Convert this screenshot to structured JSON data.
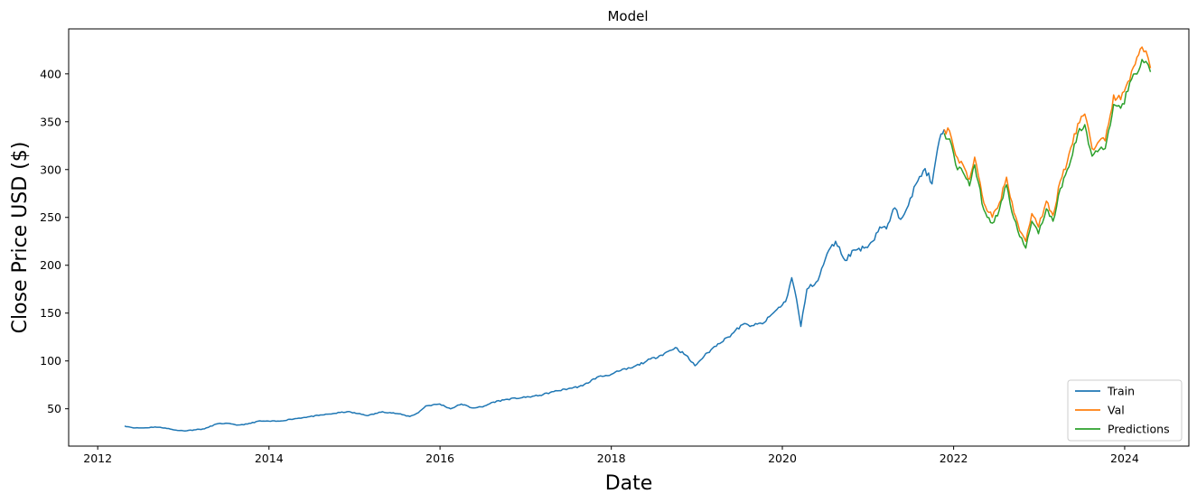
{
  "chart_data": {
    "type": "line",
    "title": "Model",
    "xlabel": "Date",
    "ylabel": "Close Price USD ($)",
    "xlim": [
      "2011-08-30",
      "2024-10-01"
    ],
    "ylim": [
      11,
      447
    ],
    "x_ticks": [
      "2012",
      "2014",
      "2016",
      "2018",
      "2020",
      "2022",
      "2024"
    ],
    "y_ticks": [
      "50",
      "100",
      "150",
      "200",
      "250",
      "300",
      "350",
      "400"
    ],
    "x_tick_values": [
      "2012-01-01",
      "2014-01-01",
      "2016-01-01",
      "2018-01-01",
      "2020-01-01",
      "2022-01-01",
      "2024-01-01"
    ],
    "y_tick_values": [
      50,
      100,
      150,
      200,
      250,
      300,
      350,
      400
    ],
    "grid": false,
    "legend_position": "lower right",
    "series": [
      {
        "name": "Train",
        "color": "#1f77b4",
        "points": [
          [
            "2012-04-25",
            32
          ],
          [
            "2012-05-15",
            31
          ],
          [
            "2012-06-10",
            30
          ],
          [
            "2012-07-15",
            30
          ],
          [
            "2012-09-01",
            31
          ],
          [
            "2012-10-15",
            30
          ],
          [
            "2012-11-20",
            28
          ],
          [
            "2012-12-31",
            27
          ],
          [
            "2013-02-15",
            28
          ],
          [
            "2013-04-01",
            29
          ],
          [
            "2013-05-20",
            34
          ],
          [
            "2013-07-01",
            35
          ],
          [
            "2013-08-15",
            33
          ],
          [
            "2013-10-01",
            34
          ],
          [
            "2013-11-15",
            37
          ],
          [
            "2014-01-01",
            37
          ],
          [
            "2014-02-15",
            37
          ],
          [
            "2014-04-01",
            39
          ],
          [
            "2014-06-01",
            41
          ],
          [
            "2014-08-01",
            43
          ],
          [
            "2014-10-01",
            45
          ],
          [
            "2014-12-01",
            47
          ],
          [
            "2015-01-15",
            45
          ],
          [
            "2015-03-01",
            43
          ],
          [
            "2015-05-01",
            47
          ],
          [
            "2015-07-01",
            45
          ],
          [
            "2015-08-25",
            42
          ],
          [
            "2015-10-01",
            46
          ],
          [
            "2015-11-01",
            53
          ],
          [
            "2015-12-31",
            55
          ],
          [
            "2016-02-15",
            50
          ],
          [
            "2016-04-01",
            55
          ],
          [
            "2016-05-15",
            51
          ],
          [
            "2016-07-01",
            52
          ],
          [
            "2016-08-15",
            57
          ],
          [
            "2016-10-15",
            60
          ],
          [
            "2016-12-31",
            62
          ],
          [
            "2017-03-01",
            64
          ],
          [
            "2017-05-01",
            68
          ],
          [
            "2017-07-01",
            71
          ],
          [
            "2017-09-01",
            74
          ],
          [
            "2017-11-01",
            83
          ],
          [
            "2018-01-01",
            86
          ],
          [
            "2018-02-10",
            90
          ],
          [
            "2018-04-01",
            93
          ],
          [
            "2018-06-01",
            100
          ],
          [
            "2018-08-01",
            106
          ],
          [
            "2018-10-01",
            114
          ],
          [
            "2018-11-15",
            106
          ],
          [
            "2018-12-24",
            95
          ],
          [
            "2019-02-01",
            105
          ],
          [
            "2019-04-01",
            118
          ],
          [
            "2019-05-15",
            125
          ],
          [
            "2019-07-15",
            138
          ],
          [
            "2019-09-01",
            137
          ],
          [
            "2019-10-15",
            140
          ],
          [
            "2019-12-01",
            152
          ],
          [
            "2020-01-15",
            162
          ],
          [
            "2020-02-10",
            187
          ],
          [
            "2020-03-01",
            165
          ],
          [
            "2020-03-20",
            136
          ],
          [
            "2020-04-15",
            175
          ],
          [
            "2020-06-01",
            184
          ],
          [
            "2020-07-10",
            212
          ],
          [
            "2020-08-15",
            225
          ],
          [
            "2020-09-25",
            205
          ],
          [
            "2020-11-01",
            216
          ],
          [
            "2020-12-15",
            218
          ],
          [
            "2021-01-20",
            225
          ],
          [
            "2021-02-20",
            240
          ],
          [
            "2021-03-20",
            238
          ],
          [
            "2021-04-25",
            260
          ],
          [
            "2021-05-20",
            248
          ],
          [
            "2021-06-30",
            270
          ],
          [
            "2021-08-01",
            288
          ],
          [
            "2021-09-01",
            301
          ],
          [
            "2021-10-01",
            285
          ],
          [
            "2021-11-01",
            331
          ],
          [
            "2021-11-22",
            342
          ]
        ]
      },
      {
        "name": "Val",
        "color": "#ff7f0e",
        "points": [
          [
            "2021-11-22",
            342
          ],
          [
            "2021-12-15",
            340
          ],
          [
            "2022-01-10",
            315
          ],
          [
            "2022-02-10",
            305
          ],
          [
            "2022-03-10",
            290
          ],
          [
            "2022-04-01",
            313
          ],
          [
            "2022-05-10",
            265
          ],
          [
            "2022-06-15",
            250
          ],
          [
            "2022-07-15",
            265
          ],
          [
            "2022-08-15",
            292
          ],
          [
            "2022-09-15",
            255
          ],
          [
            "2022-10-10",
            236
          ],
          [
            "2022-11-05",
            225
          ],
          [
            "2022-12-01",
            254
          ],
          [
            "2022-12-29",
            240
          ],
          [
            "2023-02-01",
            267
          ],
          [
            "2023-03-01",
            252
          ],
          [
            "2023-04-01",
            288
          ],
          [
            "2023-05-01",
            308
          ],
          [
            "2023-06-15",
            348
          ],
          [
            "2023-07-15",
            358
          ],
          [
            "2023-08-15",
            322
          ],
          [
            "2023-09-15",
            330
          ],
          [
            "2023-10-10",
            330
          ],
          [
            "2023-11-15",
            378
          ],
          [
            "2023-12-15",
            373
          ],
          [
            "2024-01-15",
            392
          ],
          [
            "2024-02-15",
            410
          ],
          [
            "2024-03-15",
            428
          ],
          [
            "2024-04-01",
            424
          ],
          [
            "2024-04-20",
            406
          ]
        ]
      },
      {
        "name": "Predictions",
        "color": "#2ca02c",
        "points": [
          [
            "2021-11-22",
            338
          ],
          [
            "2021-12-15",
            332
          ],
          [
            "2022-01-10",
            305
          ],
          [
            "2022-02-10",
            297
          ],
          [
            "2022-03-10",
            283
          ],
          [
            "2022-04-01",
            305
          ],
          [
            "2022-05-10",
            258
          ],
          [
            "2022-06-15",
            244
          ],
          [
            "2022-07-15",
            258
          ],
          [
            "2022-08-15",
            284
          ],
          [
            "2022-09-15",
            249
          ],
          [
            "2022-10-10",
            230
          ],
          [
            "2022-11-05",
            218
          ],
          [
            "2022-12-01",
            246
          ],
          [
            "2022-12-29",
            233
          ],
          [
            "2023-02-01",
            259
          ],
          [
            "2023-03-01",
            246
          ],
          [
            "2023-04-01",
            280
          ],
          [
            "2023-05-01",
            300
          ],
          [
            "2023-06-15",
            338
          ],
          [
            "2023-07-15",
            347
          ],
          [
            "2023-08-15",
            314
          ],
          [
            "2023-09-15",
            321
          ],
          [
            "2023-10-10",
            322
          ],
          [
            "2023-11-15",
            368
          ],
          [
            "2023-12-15",
            364
          ],
          [
            "2024-01-15",
            382
          ],
          [
            "2024-02-15",
            400
          ],
          [
            "2024-03-15",
            415
          ],
          [
            "2024-04-01",
            413
          ],
          [
            "2024-04-20",
            402
          ]
        ]
      }
    ]
  }
}
